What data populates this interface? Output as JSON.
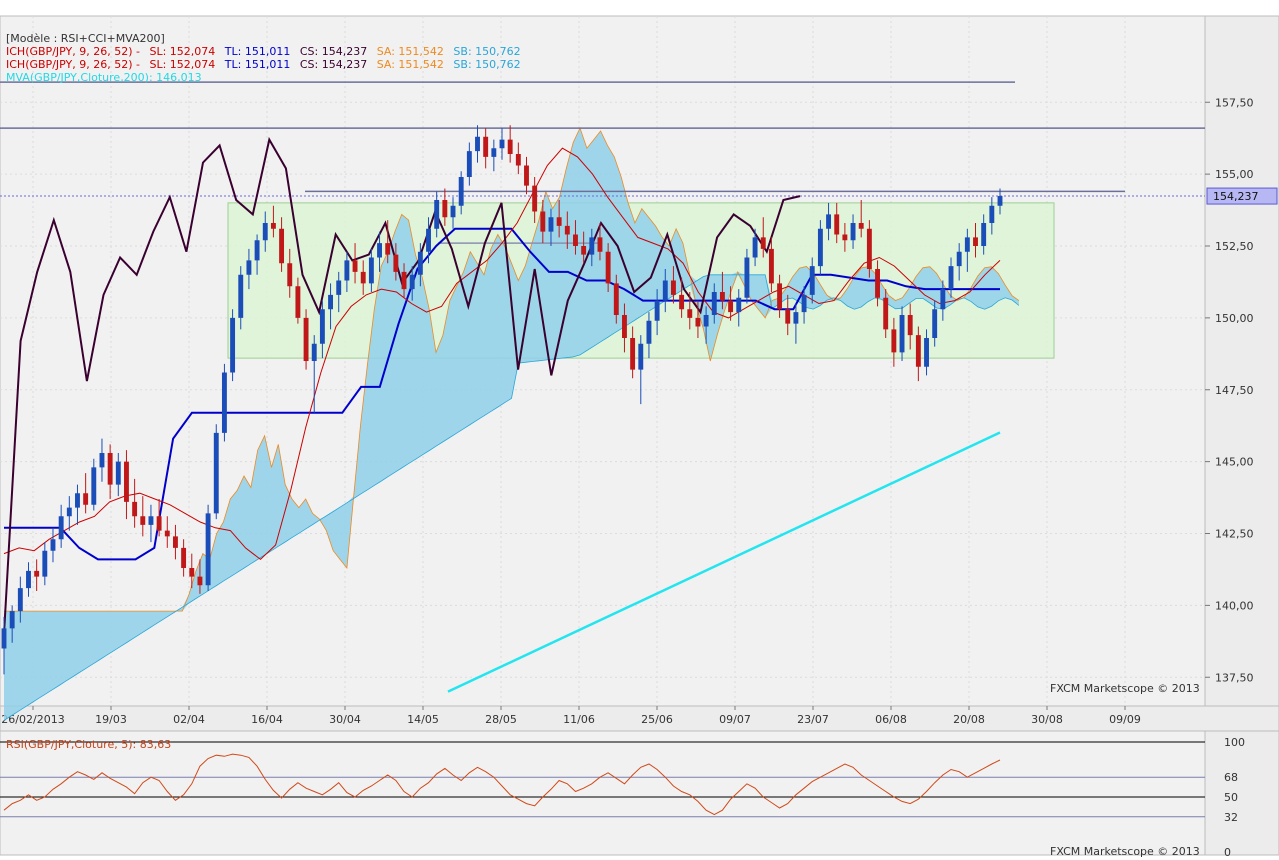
{
  "legend": {
    "model": "[Modèle : RSI+CCI+MVA200]",
    "ich": [
      {
        "name": "ICH(GBP/JPY, 9, 26, 52) -",
        "sl": "SL: 152,074",
        "tl": "TL: 151,011",
        "cs": "CS: 154,237",
        "sa": "SA: 151,542",
        "sb": "SB: 150,762"
      },
      {
        "name": "ICH(GBP/JPY, 9, 26, 52) -",
        "sl": "SL: 152,074",
        "tl": "TL: 151,011",
        "cs": "CS: 154,237",
        "sa": "SA: 151,542",
        "sb": "SB: 150,762"
      }
    ],
    "mva": "MVA(GBP/JPY,Cloture,200): 146,013"
  },
  "colors": {
    "sl": "#cc0000",
    "tl": "#0000cc",
    "cs": "#3a0030",
    "sa": "#ee8a20",
    "sb": "#2aa6d8",
    "mva": "#22e5ef",
    "bull": "#1a4db8",
    "bear": "#c01818",
    "doji": "#808080",
    "cloud_up": "#8fd0ea",
    "cloud_down": "#f1c08c",
    "zone": "#ddf5d6",
    "rsi": "#d04a1a"
  },
  "price_label": "154,237",
  "watermark_main": "FXCM Marketscope © 2013",
  "watermark_rsi": "FXCM Marketscope © 2013",
  "rsi_legend": "RSI(GBP/JPY,Cloture, 5): 83,63",
  "chart_data": [
    {
      "type": "candlestick",
      "title": "",
      "y_axis_ticks": [
        "137,50",
        "140,00",
        "142,50",
        "145,00",
        "147,50",
        "150,00",
        "152,50",
        "155,00",
        "157,50"
      ],
      "x_axis_ticks": [
        "26/02/2013",
        "19/03",
        "02/04",
        "16/04",
        "30/04",
        "14/05",
        "28/05",
        "11/06",
        "25/06",
        "09/07",
        "23/07",
        "06/08",
        "20/08",
        "30/08",
        "09/09"
      ],
      "ylim": [
        136.5,
        160.5
      ],
      "last_price": 154.237,
      "candles": [
        [
          138.5,
          139.6,
          137.6,
          139.2
        ],
        [
          139.2,
          140.0,
          138.7,
          139.8
        ],
        [
          139.8,
          141.0,
          139.4,
          140.6
        ],
        [
          140.6,
          141.5,
          140.3,
          141.2
        ],
        [
          141.2,
          141.6,
          140.5,
          141.0
        ],
        [
          141.0,
          142.2,
          140.7,
          141.9
        ],
        [
          141.9,
          142.7,
          141.5,
          142.3
        ],
        [
          142.3,
          143.5,
          142.0,
          143.1
        ],
        [
          143.1,
          143.8,
          142.6,
          143.4
        ],
        [
          143.4,
          144.2,
          142.8,
          143.9
        ],
        [
          143.9,
          144.6,
          143.2,
          143.5
        ],
        [
          143.5,
          145.1,
          143.3,
          144.8
        ],
        [
          144.8,
          145.8,
          144.3,
          145.3
        ],
        [
          145.3,
          145.6,
          143.7,
          144.2
        ],
        [
          144.2,
          145.3,
          143.8,
          145.0
        ],
        [
          145.0,
          145.4,
          143.0,
          143.6
        ],
        [
          143.6,
          144.4,
          142.7,
          143.1
        ],
        [
          143.1,
          143.8,
          142.4,
          142.8
        ],
        [
          142.8,
          143.5,
          142.2,
          143.1
        ],
        [
          143.1,
          143.7,
          142.4,
          142.6
        ],
        [
          142.6,
          143.1,
          142.0,
          142.4
        ],
        [
          142.4,
          142.8,
          141.6,
          142.0
        ],
        [
          142.0,
          142.3,
          141.0,
          141.3
        ],
        [
          141.3,
          141.8,
          140.6,
          141.0
        ],
        [
          141.0,
          141.6,
          140.4,
          140.7
        ],
        [
          140.7,
          143.5,
          140.5,
          143.2
        ],
        [
          143.2,
          146.3,
          143.0,
          146.0
        ],
        [
          146.0,
          148.4,
          145.7,
          148.1
        ],
        [
          148.1,
          150.3,
          147.8,
          150.0
        ],
        [
          150.0,
          151.8,
          149.6,
          151.5
        ],
        [
          151.5,
          152.4,
          151.0,
          152.0
        ],
        [
          152.0,
          152.9,
          151.5,
          152.7
        ],
        [
          152.7,
          153.7,
          152.3,
          153.3
        ],
        [
          153.3,
          153.9,
          152.8,
          153.1
        ],
        [
          153.1,
          153.5,
          151.6,
          151.9
        ],
        [
          151.9,
          152.4,
          150.7,
          151.1
        ],
        [
          151.1,
          151.4,
          149.8,
          150.0
        ],
        [
          150.0,
          150.3,
          148.2,
          148.5
        ],
        [
          148.5,
          149.4,
          146.7,
          149.1
        ],
        [
          149.1,
          150.6,
          148.6,
          150.3
        ],
        [
          150.3,
          151.2,
          149.6,
          150.8
        ],
        [
          150.8,
          151.6,
          150.2,
          151.3
        ],
        [
          151.3,
          152.3,
          150.9,
          152.0
        ],
        [
          152.0,
          152.6,
          151.2,
          151.6
        ],
        [
          151.6,
          152.0,
          150.8,
          151.2
        ],
        [
          151.2,
          152.4,
          150.9,
          152.1
        ],
        [
          152.1,
          153.0,
          151.6,
          152.6
        ],
        [
          152.6,
          153.4,
          151.9,
          152.2
        ],
        [
          152.2,
          152.6,
          151.3,
          151.6
        ],
        [
          151.6,
          151.9,
          150.7,
          151.0
        ],
        [
          151.0,
          151.8,
          150.6,
          151.5
        ],
        [
          151.5,
          152.6,
          151.1,
          152.3
        ],
        [
          152.3,
          153.5,
          151.9,
          153.1
        ],
        [
          153.1,
          154.4,
          152.8,
          154.1
        ],
        [
          154.1,
          154.5,
          153.2,
          153.5
        ],
        [
          153.5,
          154.2,
          153.1,
          153.9
        ],
        [
          153.9,
          155.1,
          153.6,
          154.9
        ],
        [
          154.9,
          156.1,
          154.6,
          155.8
        ],
        [
          155.8,
          156.7,
          155.4,
          156.3
        ],
        [
          156.3,
          156.6,
          155.2,
          155.6
        ],
        [
          155.6,
          156.2,
          155.1,
          155.9
        ],
        [
          155.9,
          156.6,
          155.5,
          156.2
        ],
        [
          156.2,
          156.7,
          155.4,
          155.7
        ],
        [
          155.7,
          156.1,
          155.0,
          155.3
        ],
        [
          155.3,
          155.6,
          154.3,
          154.6
        ],
        [
          154.6,
          154.9,
          153.3,
          153.7
        ],
        [
          153.7,
          154.1,
          152.6,
          153.0
        ],
        [
          153.0,
          153.8,
          152.5,
          153.5
        ],
        [
          153.5,
          154.1,
          152.8,
          153.2
        ],
        [
          153.2,
          153.7,
          152.4,
          152.9
        ],
        [
          152.9,
          153.4,
          152.2,
          152.5
        ],
        [
          152.5,
          153.0,
          151.9,
          152.2
        ],
        [
          152.2,
          153.1,
          151.8,
          152.8
        ],
        [
          152.8,
          153.3,
          152.0,
          152.3
        ],
        [
          152.3,
          152.6,
          150.9,
          151.2
        ],
        [
          151.2,
          151.5,
          149.8,
          150.1
        ],
        [
          150.1,
          150.5,
          148.8,
          149.3
        ],
        [
          149.3,
          149.7,
          147.9,
          148.2
        ],
        [
          148.2,
          149.4,
          147.0,
          149.1
        ],
        [
          149.1,
          150.2,
          148.6,
          149.9
        ],
        [
          149.9,
          151.0,
          149.4,
          150.6
        ],
        [
          150.6,
          151.7,
          150.2,
          151.3
        ],
        [
          151.3,
          151.8,
          150.5,
          150.8
        ],
        [
          150.8,
          151.4,
          150.0,
          150.3
        ],
        [
          150.3,
          150.9,
          149.6,
          150.0
        ],
        [
          150.0,
          150.6,
          149.3,
          149.7
        ],
        [
          149.7,
          150.4,
          149.1,
          150.1
        ],
        [
          150.1,
          151.2,
          149.8,
          150.9
        ],
        [
          150.9,
          151.6,
          150.3,
          150.6
        ],
        [
          150.6,
          151.1,
          149.9,
          150.2
        ],
        [
          150.2,
          151.0,
          149.7,
          150.7
        ],
        [
          150.7,
          152.4,
          150.5,
          152.1
        ],
        [
          152.1,
          153.1,
          151.8,
          152.8
        ],
        [
          152.8,
          153.5,
          152.1,
          152.4
        ],
        [
          152.4,
          152.8,
          150.9,
          151.2
        ],
        [
          151.2,
          151.5,
          150.0,
          150.3
        ],
        [
          150.3,
          150.8,
          149.4,
          149.8
        ],
        [
          149.8,
          150.5,
          149.1,
          150.2
        ],
        [
          150.2,
          151.1,
          149.8,
          150.8
        ],
        [
          150.8,
          152.1,
          150.5,
          151.8
        ],
        [
          151.8,
          153.4,
          151.5,
          153.1
        ],
        [
          153.1,
          154.0,
          152.7,
          153.6
        ],
        [
          153.6,
          154.0,
          152.6,
          152.9
        ],
        [
          152.9,
          153.3,
          152.3,
          152.7
        ],
        [
          152.7,
          153.6,
          152.4,
          153.3
        ],
        [
          153.3,
          154.1,
          152.8,
          153.1
        ],
        [
          153.1,
          153.4,
          151.4,
          151.7
        ],
        [
          151.7,
          152.0,
          150.4,
          150.7
        ],
        [
          150.7,
          151.0,
          149.3,
          149.6
        ],
        [
          149.6,
          150.0,
          148.3,
          148.8
        ],
        [
          148.8,
          150.4,
          148.5,
          150.1
        ],
        [
          150.1,
          150.5,
          148.9,
          149.4
        ],
        [
          149.4,
          149.7,
          147.8,
          148.3
        ],
        [
          148.3,
          149.6,
          148.0,
          149.3
        ],
        [
          149.3,
          150.6,
          149.0,
          150.3
        ],
        [
          150.3,
          151.3,
          149.9,
          151.0
        ],
        [
          151.0,
          152.1,
          150.7,
          151.8
        ],
        [
          151.8,
          152.6,
          151.3,
          152.3
        ],
        [
          152.3,
          153.1,
          151.6,
          152.8
        ],
        [
          152.8,
          153.3,
          152.1,
          152.5
        ],
        [
          152.5,
          153.6,
          152.2,
          153.3
        ],
        [
          153.3,
          154.2,
          152.9,
          153.9
        ],
        [
          153.9,
          154.5,
          153.6,
          154.237
        ]
      ],
      "tenkan_sen_SL": [
        141.8,
        142.0,
        141.9,
        142.3,
        142.6,
        142.9,
        143.1,
        143.6,
        143.8,
        143.9,
        143.7,
        143.5,
        143.2,
        142.9,
        142.7,
        142.6,
        142.0,
        141.6,
        142.1,
        144.0,
        146.2,
        148.1,
        149.7,
        150.4,
        150.8,
        151.0,
        150.9,
        150.5,
        150.2,
        150.4,
        151.2,
        151.6,
        152.0,
        152.6,
        153.3,
        154.3,
        155.3,
        155.9,
        155.6,
        155.0,
        154.2,
        153.5,
        152.8,
        152.6,
        152.4,
        151.9,
        150.9,
        150.2,
        150.0,
        150.3,
        150.6,
        150.9,
        151.1,
        150.8,
        150.5,
        150.6,
        151.3,
        151.9,
        152.1,
        151.8,
        151.3,
        150.8,
        150.5,
        150.6,
        150.9,
        151.5,
        152.0
      ],
      "kijun_sen_TL": [
        142.7,
        142.7,
        142.7,
        142.7,
        142.0,
        141.6,
        141.6,
        141.6,
        142.0,
        145.8,
        146.7,
        146.7,
        146.7,
        146.7,
        146.7,
        146.7,
        146.7,
        146.7,
        146.7,
        147.6,
        147.6,
        149.8,
        151.7,
        152.5,
        153.1,
        153.1,
        153.1,
        153.1,
        152.3,
        151.6,
        151.6,
        151.3,
        151.3,
        151.0,
        150.6,
        150.6,
        150.6,
        150.6,
        150.6,
        150.6,
        150.6,
        150.3,
        150.3,
        151.5,
        151.5,
        151.4,
        151.3,
        151.3,
        151.1,
        151.0,
        151.0,
        151.0,
        151.0,
        151.0
      ],
      "chikou_span_CS": [
        139.0,
        149.2,
        151.6,
        153.4,
        151.6,
        147.8,
        150.8,
        152.1,
        151.5,
        153.0,
        154.2,
        152.3,
        155.4,
        156.0,
        154.1,
        153.6,
        156.2,
        155.2,
        151.5,
        150.2,
        152.9,
        152.0,
        152.2,
        153.3,
        151.2,
        152.0,
        153.7,
        152.4,
        150.4,
        152.6,
        154.0,
        148.2,
        151.7,
        148.0,
        150.6,
        151.9,
        153.3,
        152.5,
        150.9,
        151.4,
        152.9,
        151.0,
        150.2,
        152.8,
        153.6,
        153.2,
        152.3,
        154.1,
        154.237
      ],
      "mva_200": {
        "start": 137.0,
        "end": 146.013
      },
      "horizontal_levels": [
        158.2,
        156.6,
        154.4,
        152.6
      ],
      "consolidation_zone": {
        "low": 148.6,
        "high": 154.0,
        "start": "09/04",
        "end": "06/09"
      }
    },
    {
      "type": "line",
      "title": "",
      "series": [
        {
          "name": "RSI(GBP/JPY,Cloture, 5)",
          "values": [
            38,
            44,
            47,
            52,
            47,
            50,
            57,
            62,
            68,
            73,
            70,
            66,
            72,
            67,
            63,
            59,
            53,
            63,
            68,
            65,
            55,
            47,
            52,
            62,
            78,
            85,
            88,
            87,
            89,
            88,
            86,
            78,
            66,
            56,
            49,
            57,
            63,
            58,
            55,
            52,
            57,
            63,
            54,
            50,
            56,
            60,
            65,
            70,
            65,
            55,
            50,
            58,
            63,
            71,
            76,
            70,
            65,
            72,
            77,
            73,
            68,
            60,
            52,
            48,
            44,
            42,
            50,
            57,
            65,
            62,
            55,
            58,
            62,
            68,
            72,
            67,
            62,
            70,
            77,
            80,
            75,
            68,
            60,
            55,
            52,
            46,
            38,
            34,
            38,
            48,
            55,
            62,
            58,
            50,
            45,
            40,
            44,
            52,
            58,
            64,
            68,
            72,
            76,
            80,
            77,
            70,
            65,
            60,
            55,
            50,
            46,
            44,
            48,
            55,
            63,
            70,
            75,
            73,
            68,
            72,
            76,
            80,
            83.63
          ]
        }
      ],
      "y_axis_ticks": [
        "100",
        "68",
        "50",
        "32",
        "0"
      ],
      "ylim": [
        0,
        100
      ],
      "levels": [
        100,
        68,
        50,
        32
      ]
    }
  ]
}
